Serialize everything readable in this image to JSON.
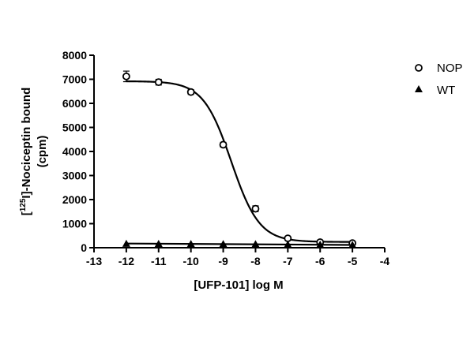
{
  "chart_data": {
    "type": "scatter",
    "title": "",
    "xlabel": "[UFP-101] log M",
    "ylabel_prefix": "[",
    "ylabel_sup": "125",
    "ylabel_suffix": "I]-Nociceptin bound",
    "ylabel_line2": "(cpm)",
    "xlim": [
      -13,
      -4
    ],
    "ylim": [
      0,
      8000
    ],
    "xticks": [
      "-13",
      "-12",
      "-11",
      "-10",
      "-9",
      "-8",
      "-7",
      "-6",
      "-5",
      "-4"
    ],
    "yticks": [
      "0",
      "1000",
      "2000",
      "3000",
      "4000",
      "5000",
      "6000",
      "7000",
      "8000"
    ],
    "legend_position": "top-right",
    "grid": false,
    "series": [
      {
        "name": "NOP",
        "marker": "open-circle",
        "x": [
          -12,
          -11,
          -10,
          -9,
          -8,
          -7,
          -6,
          -5
        ],
        "y": [
          7120,
          6880,
          6470,
          4280,
          1620,
          390,
          230,
          190
        ],
        "err": [
          220,
          120,
          100,
          100,
          120,
          60,
          40,
          40
        ],
        "fit": {
          "top": 6920,
          "bottom": 240,
          "logEC50": -8.75,
          "hill": -1
        }
      },
      {
        "name": "WT",
        "marker": "filled-triangle",
        "x": [
          -12,
          -11,
          -10,
          -9,
          -8,
          -7,
          -6,
          -5
        ],
        "y": [
          170,
          165,
          160,
          155,
          150,
          140,
          130,
          120
        ],
        "fit": {
          "start": 175,
          "end": 115
        }
      }
    ]
  }
}
